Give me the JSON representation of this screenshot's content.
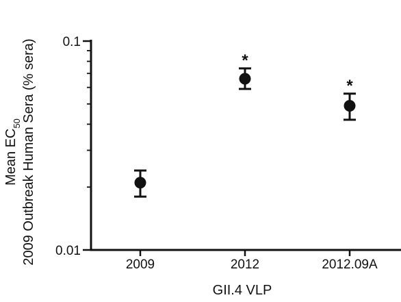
{
  "chart_data": {
    "type": "scatter",
    "categories": [
      "2009",
      "2012",
      "2012.09A"
    ],
    "values": [
      0.021,
      0.066,
      0.049
    ],
    "error_low": [
      0.018,
      0.059,
      0.042
    ],
    "error_high": [
      0.024,
      0.074,
      0.056
    ],
    "significance": [
      "",
      "*",
      "*"
    ],
    "xlabel": "GII.4 VLP",
    "ylabel": {
      "line1_prefix": "Mean EC",
      "line1_subscript": "50",
      "line2": "2009 Outbreak Human Sera (% sera)"
    },
    "ylim": [
      0.01,
      0.1
    ],
    "yscale": "log",
    "yticks": [
      "0.01",
      "0.1"
    ],
    "grid": false,
    "legend": "none",
    "marker_color": "#111111"
  }
}
